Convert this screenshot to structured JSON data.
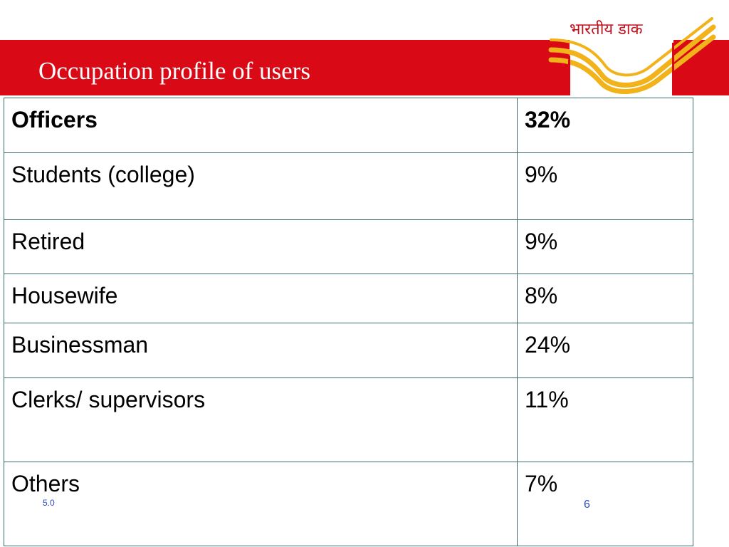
{
  "slide": {
    "title": "Occupation profile of users",
    "logo_text": "भारतीय डाक",
    "footer_left": "5.0",
    "page_number": "6"
  },
  "colors": {
    "banner": "#d90a16",
    "logo_yellow": "#f2b21a",
    "table_border": "#3d6b6b",
    "footer_text": "#2a4bbf"
  },
  "table": {
    "rows": [
      {
        "label": "Officers",
        "value": "32%",
        "bold": true
      },
      {
        "label": "Students (college)",
        "value": "9%",
        "bold": false
      },
      {
        "label": "Retired",
        "value": "9%",
        "bold": false
      },
      {
        "label": "Housewife",
        "value": "8%",
        "bold": false
      },
      {
        "label": "Businessman",
        "value": "24%",
        "bold": false
      },
      {
        "label": "Clerks/ supervisors",
        "value": "11%",
        "bold": false
      },
      {
        "label": "Others",
        "value": "7%",
        "bold": false
      }
    ]
  }
}
